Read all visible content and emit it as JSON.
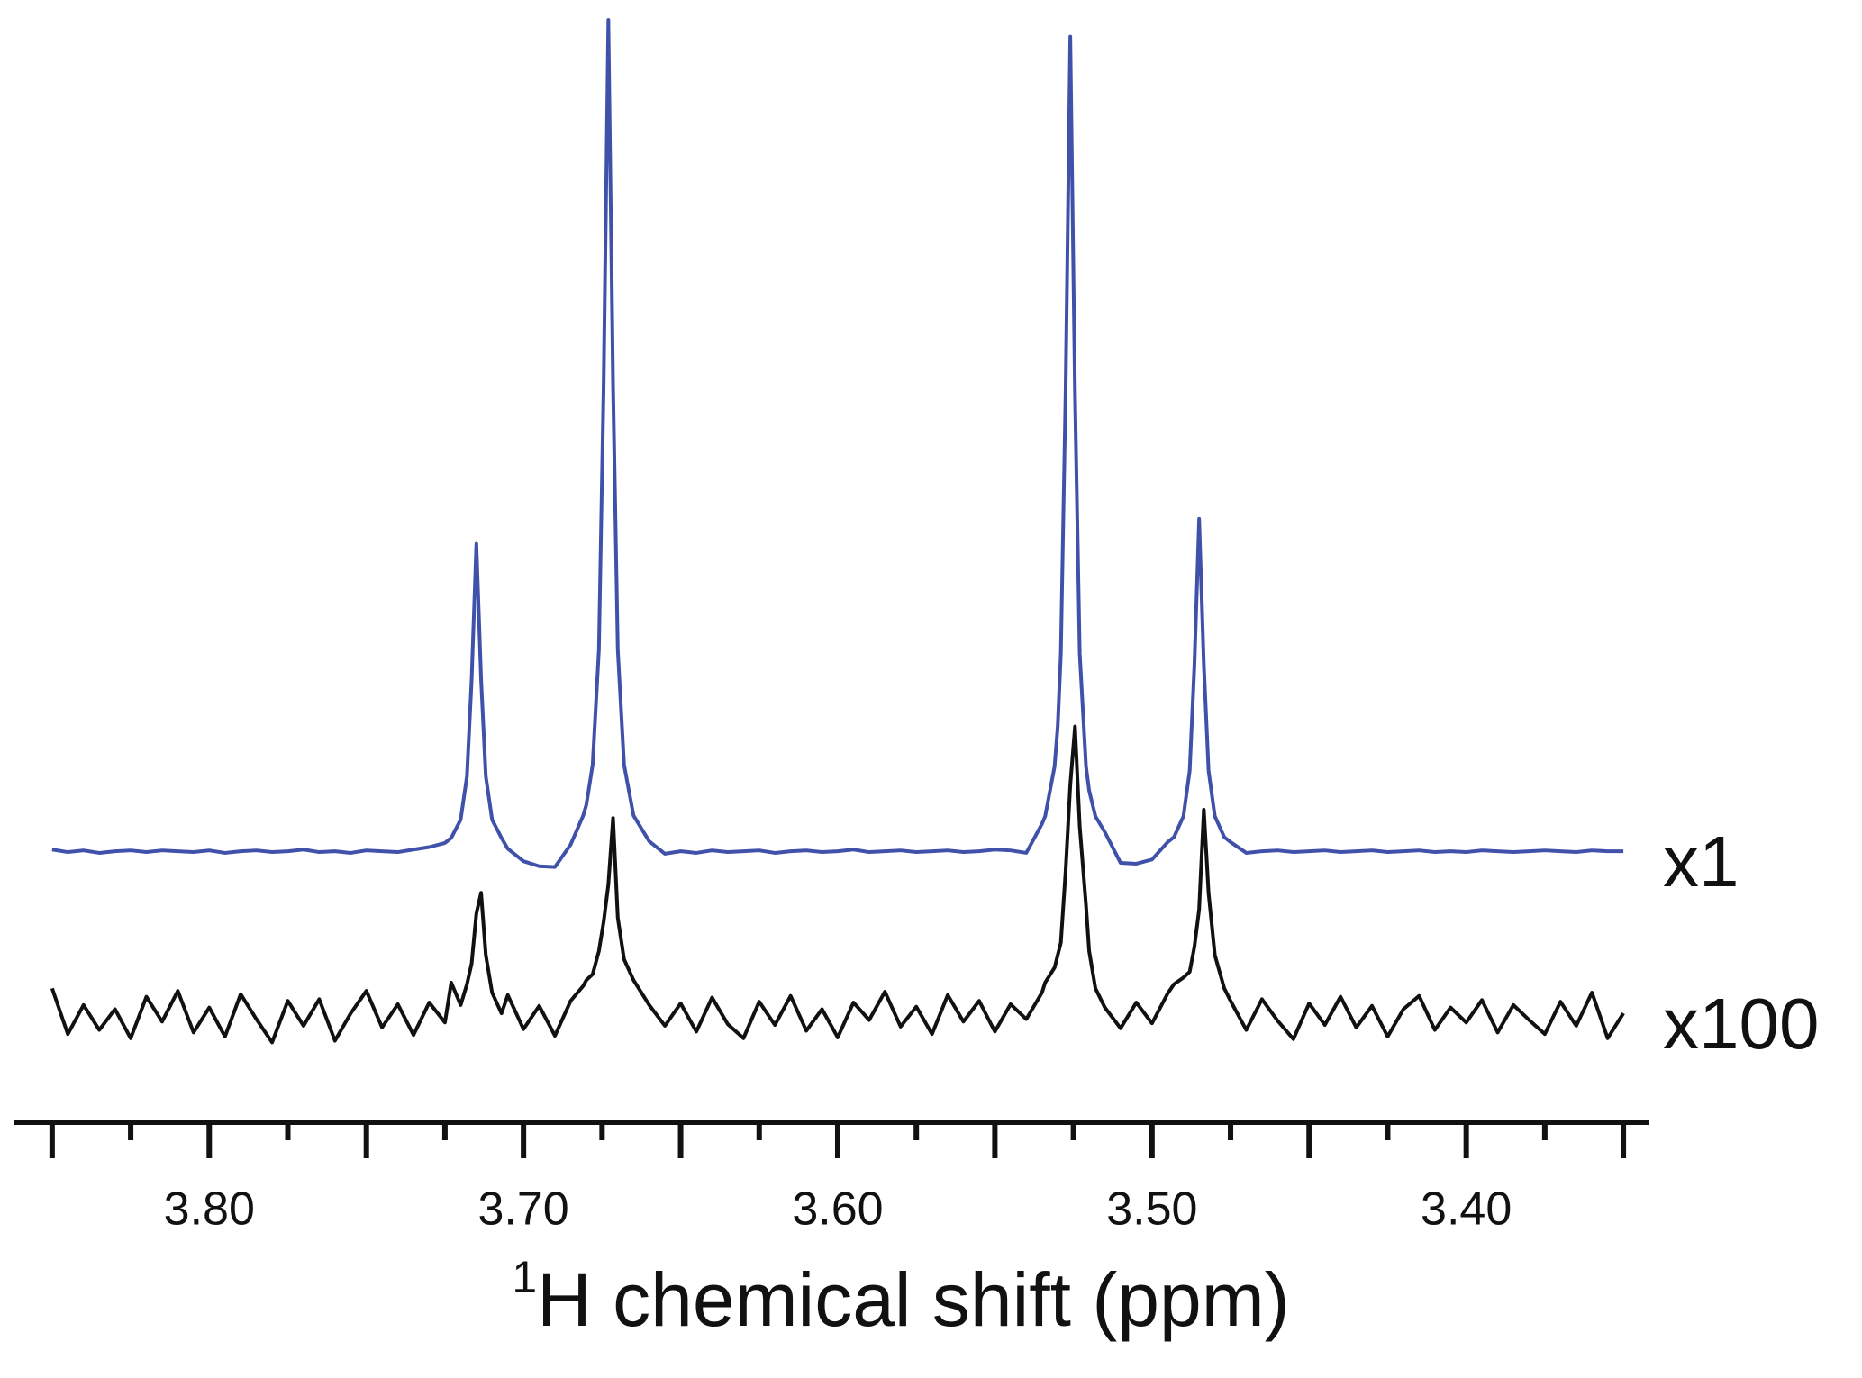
{
  "chart_data": {
    "type": "line",
    "xlabel_superscript": "1",
    "xlabel": "H chemical shift (ppm)",
    "xlim": [
      3.862,
      3.342
    ],
    "ylim": [
      -32.6,
      102.4
    ],
    "xticks": [
      {
        "value": 3.8,
        "label": "3.80"
      },
      {
        "value": 3.7,
        "label": "3.70"
      },
      {
        "value": 3.6,
        "label": "3.60"
      },
      {
        "value": 3.5,
        "label": "3.50"
      },
      {
        "value": 3.4,
        "label": "3.40"
      }
    ],
    "xmidticks": [
      3.85,
      3.75,
      3.65,
      3.55,
      3.45,
      3.35
    ],
    "xminorticks": [
      3.825,
      3.775,
      3.725,
      3.675,
      3.625,
      3.575,
      3.525,
      3.475,
      3.425,
      3.375
    ],
    "x": [
      3.85,
      3.845,
      3.84,
      3.835,
      3.83,
      3.825,
      3.82,
      3.815,
      3.81,
      3.805,
      3.8,
      3.795,
      3.79,
      3.785,
      3.78,
      3.775,
      3.77,
      3.765,
      3.76,
      3.755,
      3.75,
      3.745,
      3.74,
      3.735,
      3.73,
      3.725,
      3.723,
      3.72,
      3.718,
      3.7165,
      3.715,
      3.7135,
      3.712,
      3.71,
      3.707,
      3.705,
      3.7,
      3.695,
      3.69,
      3.685,
      3.681,
      3.68,
      3.678,
      3.676,
      3.6745,
      3.673,
      3.6715,
      3.67,
      3.668,
      3.665,
      3.66,
      3.655,
      3.65,
      3.645,
      3.64,
      3.635,
      3.63,
      3.625,
      3.62,
      3.615,
      3.61,
      3.605,
      3.6,
      3.595,
      3.59,
      3.585,
      3.58,
      3.575,
      3.57,
      3.565,
      3.56,
      3.555,
      3.55,
      3.545,
      3.54,
      3.535,
      3.534,
      3.531,
      3.53,
      3.529,
      3.5275,
      3.526,
      3.5245,
      3.523,
      3.521,
      3.52,
      3.518,
      3.515,
      3.51,
      3.505,
      3.5,
      3.495,
      3.493,
      3.49,
      3.488,
      3.4865,
      3.485,
      3.4835,
      3.482,
      3.48,
      3.477,
      3.475,
      3.47,
      3.465,
      3.46,
      3.455,
      3.45,
      3.445,
      3.44,
      3.435,
      3.43,
      3.425,
      3.42,
      3.415,
      3.41,
      3.405,
      3.4,
      3.395,
      3.39,
      3.385,
      3.38,
      3.375,
      3.37,
      3.365,
      3.36,
      3.355,
      3.35
    ],
    "series": [
      {
        "name": "x1",
        "color": "#3f51a8",
        "values": [
          0.2,
          -0.1,
          0.1,
          -0.2,
          0.0,
          0.1,
          -0.1,
          0.1,
          0.0,
          -0.1,
          0.1,
          -0.2,
          0.0,
          0.1,
          -0.1,
          0.0,
          0.2,
          -0.1,
          0.0,
          -0.2,
          0.1,
          0.0,
          -0.1,
          0.2,
          0.5,
          1.0,
          1.6,
          3.8,
          9.0,
          20.7,
          37.0,
          20.7,
          9.0,
          3.8,
          1.6,
          0.3,
          -1.2,
          -1.8,
          -1.9,
          0.8,
          4.3,
          5.6,
          10.4,
          24.3,
          56.0,
          100.0,
          56.0,
          24.3,
          10.4,
          4.3,
          1.2,
          -0.3,
          0.0,
          -0.2,
          0.1,
          -0.1,
          0.0,
          0.1,
          -0.2,
          0.0,
          0.1,
          -0.1,
          0.0,
          0.2,
          -0.1,
          0.0,
          0.1,
          -0.1,
          0.0,
          0.1,
          -0.1,
          0.0,
          0.2,
          0.1,
          -0.2,
          3.3,
          4.2,
          10.2,
          15.0,
          23.8,
          55.0,
          98.0,
          55.0,
          23.8,
          10.2,
          7.3,
          4.2,
          2.3,
          -1.4,
          -1.5,
          -1.0,
          1.1,
          1.7,
          4.2,
          9.7,
          22.4,
          40.0,
          22.4,
          9.7,
          4.2,
          1.7,
          1.1,
          -0.2,
          0.0,
          0.1,
          -0.1,
          0.0,
          0.1,
          -0.1,
          0.0,
          0.1,
          -0.1,
          0.0,
          0.1,
          -0.1,
          0.0,
          -0.1,
          0.1,
          0.0,
          -0.1,
          0.0,
          0.1,
          0.0,
          -0.1,
          0.1,
          0.0,
          0.0
        ]
      },
      {
        "name": "x100",
        "color": "#111111",
        "values": [
          -16.5,
          -22.0,
          -18.5,
          -21.5,
          -19.0,
          -22.5,
          -17.5,
          -20.5,
          -16.8,
          -21.8,
          -18.8,
          -22.3,
          -17.2,
          -20.2,
          -23.0,
          -18.0,
          -21.0,
          -17.8,
          -22.8,
          -19.5,
          -16.8,
          -21.2,
          -18.4,
          -22.1,
          -18.2,
          -20.6,
          -15.8,
          -18.5,
          -16.0,
          -13.5,
          -7.5,
          -5.0,
          -12.5,
          -17.0,
          -19.5,
          -17.3,
          -21.4,
          -18.6,
          -22.2,
          -18.0,
          -16.2,
          -15.5,
          -14.8,
          -12.0,
          -8.5,
          -4.0,
          4.0,
          -8.0,
          -13.0,
          -15.5,
          -18.5,
          -21.0,
          -18.3,
          -21.7,
          -17.6,
          -20.8,
          -22.5,
          -18.1,
          -20.9,
          -17.4,
          -21.6,
          -19.0,
          -22.4,
          -18.2,
          -20.3,
          -16.9,
          -21.1,
          -18.7,
          -22.0,
          -17.3,
          -20.5,
          -18.0,
          -21.7,
          -18.4,
          -20.2,
          -17.0,
          -15.8,
          -14.0,
          -12.5,
          -11.0,
          -2.5,
          8.0,
          15.0,
          3.0,
          -6.5,
          -12.0,
          -16.5,
          -18.8,
          -21.3,
          -18.2,
          -20.7,
          -17.1,
          -16.0,
          -15.2,
          -14.5,
          -11.5,
          -7.0,
          5.0,
          -5.0,
          -12.5,
          -16.5,
          -18.0,
          -21.5,
          -17.8,
          -20.4,
          -22.6,
          -18.3,
          -20.9,
          -17.5,
          -21.2,
          -18.6,
          -22.3,
          -19.0,
          -17.4,
          -21.5,
          -18.8,
          -20.6,
          -17.9,
          -21.8,
          -18.5,
          -20.3,
          -22.0,
          -18.1,
          -21.0,
          -17.0,
          -22.5,
          -19.5
        ]
      }
    ]
  }
}
